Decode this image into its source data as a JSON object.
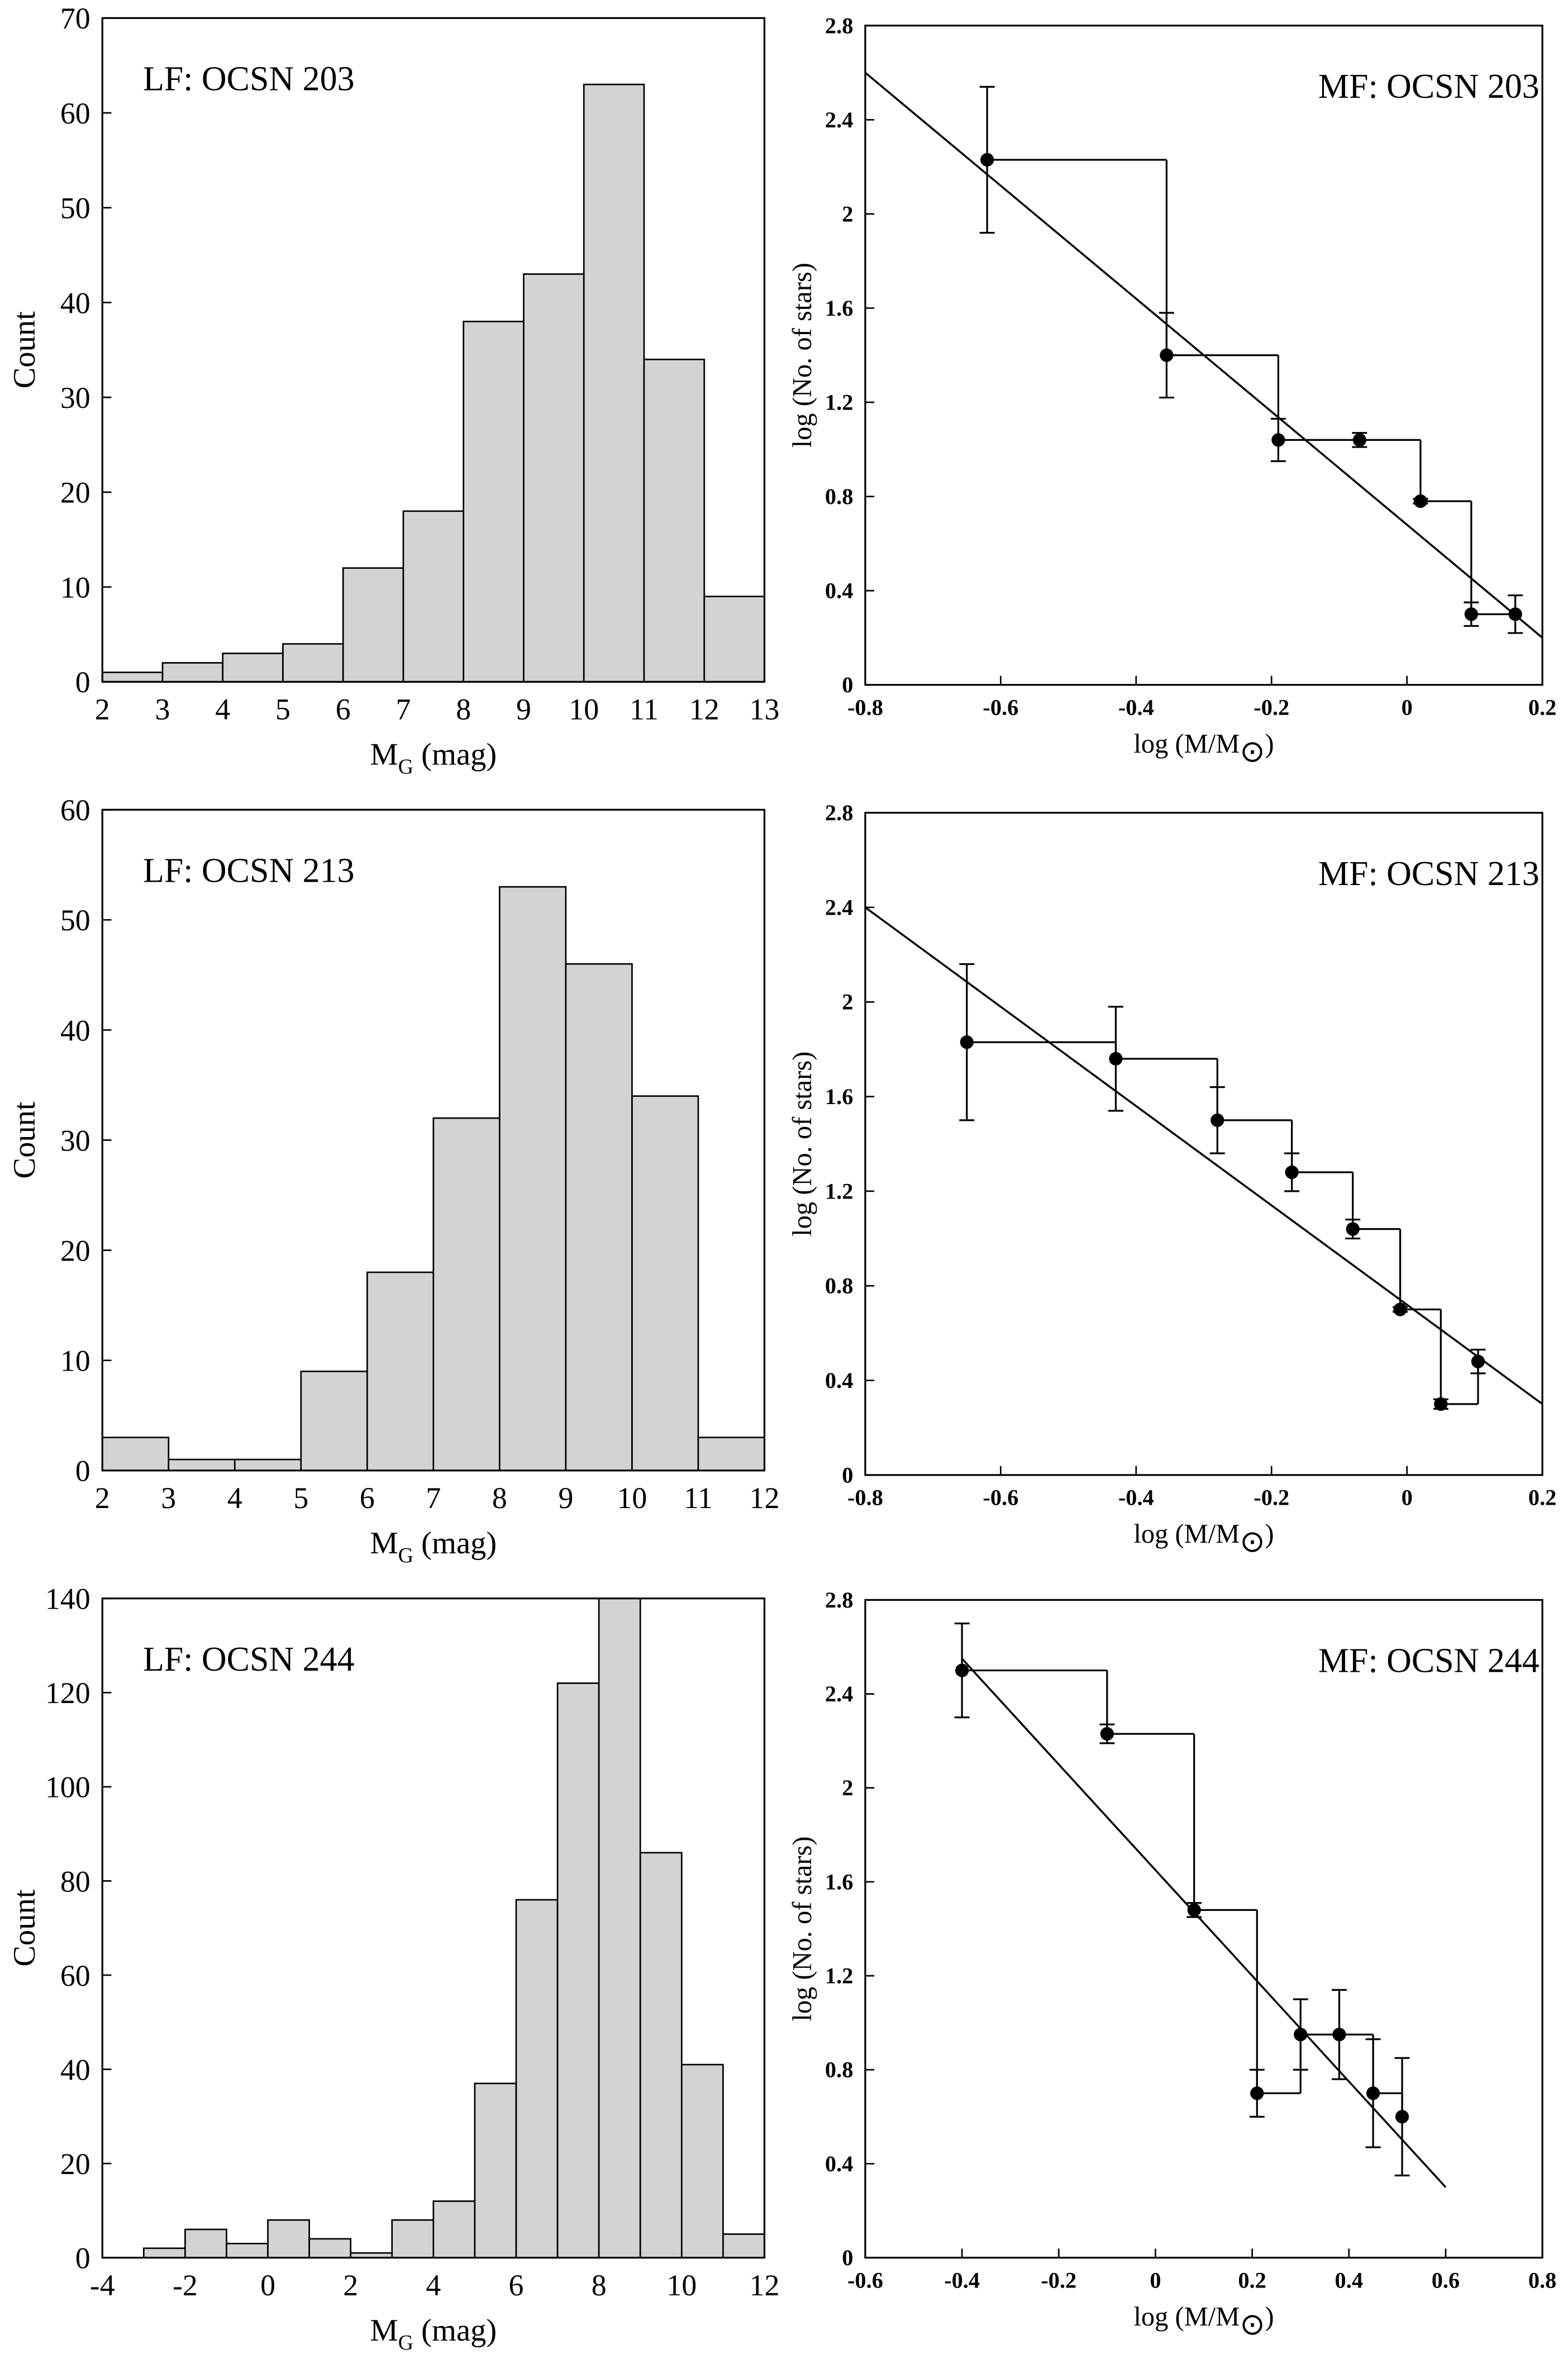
{
  "chart_data": [
    {
      "type": "histogram",
      "title": "LF: OCSN 203",
      "ylabel": "Count",
      "xlabel": {
        "main": "M",
        "sub": "G",
        "rest": " (mag)"
      },
      "bins": [
        2,
        3,
        4,
        5,
        6,
        7,
        8,
        9,
        10,
        11,
        12,
        13
      ],
      "values": [
        1,
        2,
        3,
        4,
        12,
        18,
        38,
        43,
        63,
        34,
        9
      ],
      "color": "#d3d3d3",
      "xlim": [
        2,
        13
      ],
      "xticks": [
        2,
        3,
        4,
        5,
        6,
        7,
        8,
        9,
        10,
        11,
        12,
        13
      ],
      "ylim": [
        0,
        70
      ],
      "yticks": [
        0,
        10,
        20,
        30,
        40,
        50,
        60,
        70
      ]
    },
    {
      "type": "errorbar",
      "title": "MF: OCSN 203",
      "ylabel": "log (No. of stars)",
      "xlabel": {
        "main": "log (M/M",
        "sub": "⊙",
        "rest": ")"
      },
      "x": [
        -0.62,
        -0.355,
        -0.19,
        -0.07,
        0.02,
        0.095,
        0.16
      ],
      "values": [
        2.23,
        1.4,
        1.04,
        1.04,
        0.78,
        0.3,
        0.3
      ],
      "errors": [
        0.31,
        0.18,
        0.09,
        0.03,
        0.01,
        0.05,
        0.08
      ],
      "fit": {
        "x": [
          -0.8,
          0.2
        ],
        "y": [
          2.6,
          0.2
        ]
      },
      "color": "#000000",
      "xlim": [
        -0.8,
        0.2
      ],
      "xticks": [
        -0.8,
        -0.6,
        -0.4,
        -0.2,
        0,
        0.2
      ],
      "ylim": [
        0,
        2.8
      ],
      "yticks": [
        0,
        0.4,
        0.8,
        1.2,
        1.6,
        2,
        2.4,
        2.8
      ]
    },
    {
      "type": "histogram",
      "title": "LF: OCSN 213",
      "ylabel": "Count",
      "xlabel": {
        "main": "M",
        "sub": "G",
        "rest": " (mag)"
      },
      "bins": [
        2,
        3,
        4,
        5,
        6,
        7,
        8,
        9,
        10,
        11,
        12
      ],
      "values": [
        3,
        1,
        1,
        9,
        18,
        32,
        53,
        46,
        34,
        3
      ],
      "color": "#d3d3d3",
      "xlim": [
        2,
        12
      ],
      "xticks": [
        2,
        3,
        4,
        5,
        6,
        7,
        8,
        9,
        10,
        11,
        12
      ],
      "ylim": [
        0,
        60
      ],
      "yticks": [
        0,
        10,
        20,
        30,
        40,
        50,
        60
      ]
    },
    {
      "type": "errorbar",
      "title": "MF: OCSN 213",
      "ylabel": "log (No. of stars)",
      "xlabel": {
        "main": "log (M/M",
        "sub": "⊙",
        "rest": ")"
      },
      "x": [
        -0.65,
        -0.43,
        -0.28,
        -0.17,
        -0.08,
        -0.01,
        0.05,
        0.105
      ],
      "values": [
        1.83,
        1.76,
        1.5,
        1.28,
        1.04,
        0.7,
        0.3,
        0.48
      ],
      "errors": [
        0.33,
        0.22,
        0.14,
        0.08,
        0.04,
        0.01,
        0.02,
        0.05
      ],
      "fit": {
        "x": [
          -0.8,
          0.2
        ],
        "y": [
          2.4,
          0.3
        ]
      },
      "color": "#000000",
      "xlim": [
        -0.8,
        0.2
      ],
      "xticks": [
        -0.8,
        -0.6,
        -0.4,
        -0.2,
        0,
        0.2
      ],
      "ylim": [
        0,
        2.8
      ],
      "yticks": [
        0,
        0.4,
        0.8,
        1.2,
        1.6,
        2,
        2.4,
        2.8
      ]
    },
    {
      "type": "histogram",
      "title": "LF: OCSN 244",
      "ylabel": "Count",
      "xlabel": {
        "main": "M",
        "sub": "G",
        "rest": " (mag)"
      },
      "bins": [
        -4,
        -3,
        -2,
        -1,
        0,
        1,
        2,
        3,
        4,
        5,
        6,
        7,
        8,
        9,
        10,
        11,
        12
      ],
      "values": [
        0,
        2,
        6,
        3,
        8,
        4,
        1,
        8,
        12,
        37,
        76,
        122,
        140,
        86,
        41,
        5
      ],
      "color": "#d3d3d3",
      "xlim": [
        -4,
        12
      ],
      "xticks": [
        -4,
        -2,
        0,
        2,
        4,
        6,
        8,
        10,
        12
      ],
      "ylim": [
        0,
        140
      ],
      "yticks": [
        0,
        20,
        40,
        60,
        80,
        100,
        120,
        140
      ]
    },
    {
      "type": "errorbar",
      "title": "MF: OCSN 244",
      "ylabel": "log (No. of stars)",
      "xlabel": {
        "main": "log (M/M",
        "sub": "⊙",
        "rest": ")"
      },
      "x": [
        -0.4,
        -0.1,
        0.08,
        0.21,
        0.3,
        0.38,
        0.45,
        0.51
      ],
      "values": [
        2.5,
        2.23,
        1.48,
        0.7,
        0.95,
        0.95,
        0.7,
        0.6
      ],
      "errors": [
        0.2,
        0.04,
        0.03,
        0.1,
        0.15,
        0.19,
        0.23,
        0.25
      ],
      "fit": {
        "x": [
          -0.4,
          0.6
        ],
        "y": [
          2.55,
          0.3
        ]
      },
      "color": "#000000",
      "xlim": [
        -0.6,
        0.8
      ],
      "xticks": [
        -0.6,
        -0.4,
        -0.2,
        0,
        0.2,
        0.4,
        0.6,
        0.8
      ],
      "ylim": [
        0,
        2.8
      ],
      "yticks": [
        0,
        0.4,
        0.8,
        1.2,
        1.6,
        2,
        2.4,
        2.8
      ]
    }
  ]
}
